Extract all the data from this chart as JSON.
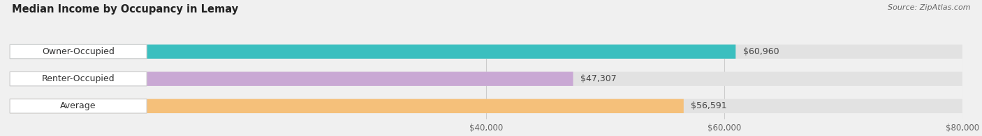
{
  "title": "Median Income by Occupancy in Lemay",
  "source": "Source: ZipAtlas.com",
  "categories": [
    "Owner-Occupied",
    "Renter-Occupied",
    "Average"
  ],
  "values": [
    60960,
    47307,
    56591
  ],
  "bar_colors": [
    "#3bbfbf",
    "#c9a8d4",
    "#f5c07a"
  ],
  "bar_labels": [
    "$60,960",
    "$47,307",
    "$56,591"
  ],
  "xlim": [
    0,
    80000
  ],
  "xticks": [
    40000,
    60000,
    80000
  ],
  "xtick_labels": [
    "$40,000",
    "$60,000",
    "$80,000"
  ],
  "background_color": "#f0f0f0",
  "bar_bg_color": "#e2e2e2",
  "title_fontsize": 10.5,
  "label_fontsize": 9,
  "source_fontsize": 8,
  "tick_fontsize": 8.5
}
